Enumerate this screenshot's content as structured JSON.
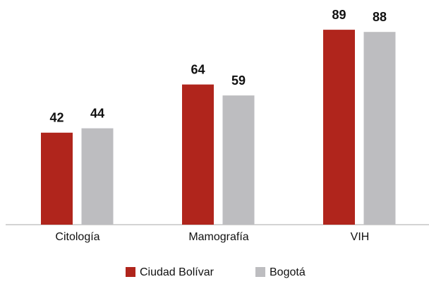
{
  "chart_data": {
    "type": "bar",
    "categories": [
      "Citología",
      "Mamografía",
      "VIH"
    ],
    "series": [
      {
        "name": "Ciudad Bolívar",
        "color": "#b0251c",
        "values": [
          42,
          64,
          89
        ]
      },
      {
        "name": "Bogotá",
        "color": "#bdbdc0",
        "values": [
          44,
          59,
          88
        ]
      }
    ],
    "ylim": [
      0,
      100
    ]
  }
}
